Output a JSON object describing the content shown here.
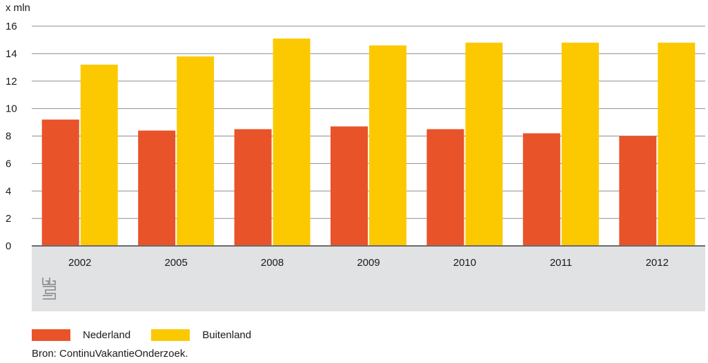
{
  "chart_data": {
    "type": "bar",
    "title": "",
    "ylabel": "x mln",
    "xlabel": "",
    "categories": [
      "2002",
      "2005",
      "2008",
      "2009",
      "2010",
      "2011",
      "2012"
    ],
    "series": [
      {
        "name": "Nederland",
        "color": "#e9532a",
        "values": [
          9.2,
          8.4,
          8.5,
          8.7,
          8.5,
          8.2,
          8.0
        ]
      },
      {
        "name": "Buitenland",
        "color": "#fcc900",
        "values": [
          13.2,
          13.8,
          15.1,
          14.6,
          14.8,
          14.8,
          14.8
        ]
      }
    ],
    "ylim": [
      0,
      16
    ],
    "yticks": [
      0,
      2,
      4,
      6,
      8,
      10,
      12,
      14,
      16
    ],
    "grid": true,
    "legend_position": "bottom-left"
  },
  "source": "Bron: ContinuVakantieOnderzoek.",
  "colors": {
    "axis_band": "#e1e2e3",
    "gridline": "#8c8c8c",
    "text": "#1a1a1a"
  },
  "icons": {
    "logo": "cbs-logo-icon"
  }
}
